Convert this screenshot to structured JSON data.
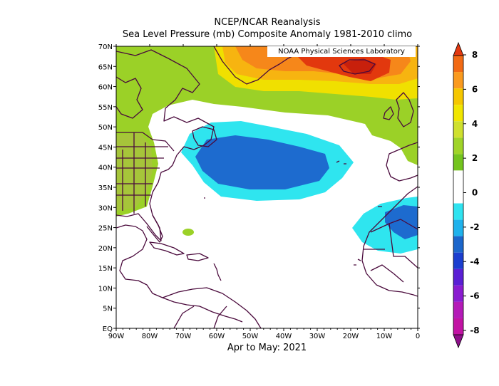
{
  "header": {
    "title": "NCEP/NCAR Reanalysis",
    "subtitle": "Sea Level Pressure (mb) Composite Anomaly 1981-2010 climo"
  },
  "credit": "NOAA Physical Sciences Laboratory",
  "period_label": "Apr to May: 2021",
  "map": {
    "lon_labels": [
      "90W",
      "80W",
      "70W",
      "60W",
      "50W",
      "40W",
      "30W",
      "20W",
      "10W",
      "0"
    ],
    "lat_labels": [
      "EQ",
      "5N",
      "10N",
      "15N",
      "20N",
      "25N",
      "30N",
      "35N",
      "40N",
      "45N",
      "50N",
      "55N",
      "60N",
      "65N",
      "70N"
    ],
    "anomaly_features": [
      {
        "name": "greenland-high",
        "sign": "positive",
        "peak_mb": 7
      },
      {
        "name": "eastern-north-america-high",
        "sign": "positive",
        "peak_mb": 3
      },
      {
        "name": "north-atlantic-low",
        "sign": "negative",
        "peak_mb": -3
      },
      {
        "name": "west-africa-low",
        "sign": "negative",
        "peak_mb": -3
      }
    ]
  },
  "colorbar": {
    "ticks": [
      "8",
      "6",
      "4",
      "2",
      "0",
      "-2",
      "-4",
      "-6",
      "-8"
    ],
    "colors": [
      "#e3380f",
      "#f26a14",
      "#fa9a1e",
      "#f5c700",
      "#f1e600",
      "#cfe02e",
      "#a0d428",
      "#74c41e",
      "#ffffff",
      "#ffffff",
      "#2fe3f0",
      "#1fb2ec",
      "#1c66cb",
      "#1b3ecf",
      "#5a1fd4",
      "#8a1cd0",
      "#b41ab8",
      "#c213a4",
      "#8e0f8a"
    ]
  }
}
